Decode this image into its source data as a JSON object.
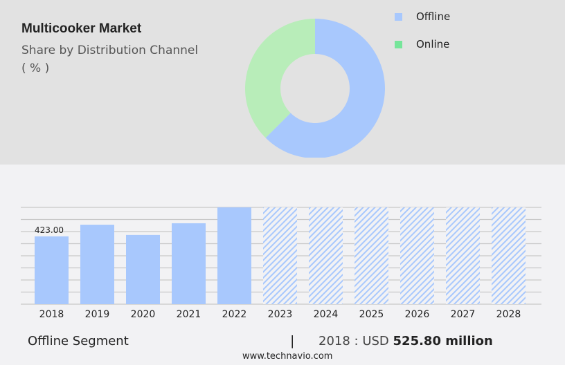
{
  "header": {
    "title": "Multicooker Market",
    "subtitle": "Share by Distribution Channel",
    "unit": "( % )"
  },
  "chart_data": [
    {
      "type": "pie",
      "donut": true,
      "categories": [
        "Offline",
        "Online"
      ],
      "values": [
        62.5,
        37.5
      ],
      "colors": [
        "#a8c8fd",
        "#b8edb9"
      ],
      "legend_colors": [
        "#a8c8fd",
        "#76e59a"
      ],
      "legend_position": "right"
    },
    {
      "type": "bar",
      "categories": [
        "2018",
        "2019",
        "2020",
        "2021",
        "2022",
        "2023",
        "2024",
        "2025",
        "2026",
        "2027",
        "2028"
      ],
      "values": [
        423.0,
        496,
        432,
        505,
        604,
        null,
        null,
        null,
        null,
        null,
        null
      ],
      "forecast": [
        "2023",
        "2024",
        "2025",
        "2026",
        "2027",
        "2028"
      ],
      "data_labels": {
        "2018": "423.00"
      },
      "ylim": [
        0,
        604
      ],
      "grid": true,
      "color": "#a8c8fd"
    }
  ],
  "footer": {
    "segment": "Offline Segment",
    "separator": "|",
    "year_prefix": "2018 : USD",
    "value": "525.80 million",
    "url": "www.technavio.com"
  }
}
